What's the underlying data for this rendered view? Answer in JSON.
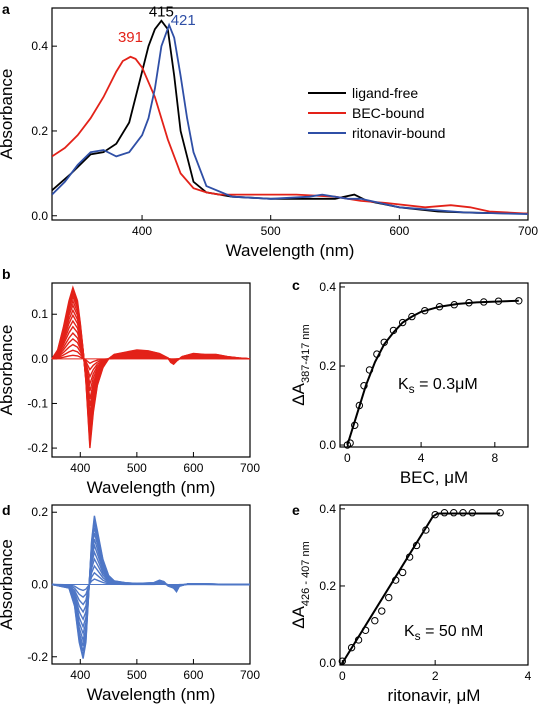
{
  "colors": {
    "black": "#000000",
    "red": "#e32219",
    "blue": "#2f4fa6",
    "lightblue": "#4f77c6"
  },
  "chart_data": [
    {
      "panel": "a",
      "type": "line",
      "xlabel": "Wavelength (nm)",
      "ylabel": "Absorbance",
      "xlim": [
        330,
        700
      ],
      "ylim": [
        -0.01,
        0.49
      ],
      "xticks": [
        400,
        500,
        600,
        700
      ],
      "yticks": [
        0.0,
        0.2,
        0.4
      ],
      "xtick_labels": [
        "400",
        "500",
        "600",
        "700"
      ],
      "ytick_labels": [
        "0.0",
        "0.2",
        "0.4"
      ],
      "legend": {
        "position": "middle-right"
      },
      "annotations": [
        {
          "text": "415",
          "color": "#000000",
          "x": 415,
          "y": 0.47
        },
        {
          "text": "391",
          "color": "#e32219",
          "x": 391,
          "y": 0.41
        },
        {
          "text": "421",
          "color": "#2f4fa6",
          "x": 432,
          "y": 0.45
        }
      ],
      "series": [
        {
          "name": "ligand-free",
          "color": "#000000",
          "x": [
            330,
            345,
            360,
            370,
            380,
            390,
            400,
            405,
            410,
            415,
            420,
            425,
            430,
            440,
            450,
            470,
            500,
            530,
            550,
            565,
            575,
            600,
            630,
            660,
            700
          ],
          "y": [
            0.06,
            0.1,
            0.145,
            0.15,
            0.17,
            0.22,
            0.34,
            0.4,
            0.44,
            0.46,
            0.44,
            0.33,
            0.2,
            0.08,
            0.055,
            0.045,
            0.04,
            0.04,
            0.04,
            0.05,
            0.035,
            0.02,
            0.01,
            0.007,
            0.005
          ]
        },
        {
          "name": "BEC-bound",
          "color": "#e32219",
          "x": [
            330,
            340,
            350,
            360,
            370,
            380,
            385,
            391,
            395,
            400,
            410,
            420,
            430,
            440,
            450,
            460,
            470,
            490,
            520,
            550,
            570,
            590,
            620,
            640,
            655,
            670,
            700
          ],
          "y": [
            0.14,
            0.16,
            0.19,
            0.23,
            0.28,
            0.34,
            0.365,
            0.375,
            0.37,
            0.35,
            0.28,
            0.18,
            0.1,
            0.065,
            0.055,
            0.05,
            0.05,
            0.05,
            0.05,
            0.045,
            0.035,
            0.03,
            0.02,
            0.025,
            0.02,
            0.01,
            0.005
          ]
        },
        {
          "name": "ritonavir-bound",
          "color": "#2f4fa6",
          "x": [
            330,
            340,
            350,
            360,
            370,
            380,
            390,
            400,
            405,
            410,
            415,
            421,
            425,
            430,
            435,
            440,
            450,
            470,
            500,
            530,
            540,
            560,
            570,
            600,
            650,
            700
          ],
          "y": [
            0.05,
            0.08,
            0.12,
            0.15,
            0.155,
            0.14,
            0.15,
            0.19,
            0.23,
            0.3,
            0.4,
            0.45,
            0.42,
            0.33,
            0.23,
            0.15,
            0.07,
            0.045,
            0.04,
            0.045,
            0.05,
            0.04,
            0.04,
            0.02,
            0.008,
            0.004
          ]
        }
      ]
    },
    {
      "panel": "b",
      "type": "line",
      "xlabel": "Wavelength (nm)",
      "ylabel": "Absorbance",
      "xlim": [
        350,
        700
      ],
      "ylim": [
        -0.22,
        0.17
      ],
      "xticks": [
        400,
        500,
        600,
        700
      ],
      "yticks": [
        -0.2,
        -0.1,
        0.0,
        0.1
      ],
      "xtick_labels": [
        "400",
        "500",
        "600",
        "700"
      ],
      "ytick_labels": [
        "-0.2",
        "-0.1",
        "0.0",
        "0.1"
      ],
      "color": "#e32219",
      "family_scales": [
        0.05,
        0.12,
        0.2,
        0.28,
        0.36,
        0.45,
        0.53,
        0.61,
        0.68,
        0.75,
        0.81,
        0.87,
        0.92,
        0.96,
        1.0
      ],
      "x": [
        350,
        360,
        370,
        380,
        387,
        395,
        400,
        405,
        410,
        417,
        423,
        430,
        440,
        450,
        460,
        480,
        500,
        520,
        540,
        555,
        560,
        565,
        570,
        580,
        600,
        620,
        640,
        660,
        680,
        700
      ],
      "y": [
        0.0,
        0.02,
        0.07,
        0.13,
        0.16,
        0.13,
        0.08,
        0.02,
        -0.05,
        -0.2,
        -0.12,
        -0.06,
        -0.02,
        0.0,
        0.01,
        0.015,
        0.02,
        0.018,
        0.012,
        0.002,
        -0.008,
        -0.012,
        -0.005,
        0.005,
        0.012,
        0.01,
        0.01,
        0.005,
        0.002,
        0.0
      ]
    },
    {
      "panel": "c",
      "type": "scatter",
      "xlabel": "BEC, μM",
      "ylabel": "ΔA",
      "ylabel_sub": "387-417 nm",
      "xlim": [
        -0.4,
        9.8
      ],
      "ylim": [
        -0.005,
        0.41
      ],
      "xticks": [
        0,
        4,
        8
      ],
      "yticks": [
        0.0,
        0.2,
        0.4
      ],
      "xtick_labels": [
        "0",
        "4",
        "8"
      ],
      "ytick_labels": [
        "0.0",
        "0.2",
        "0.4"
      ],
      "ks_label": "K",
      "ks_sub": "s",
      "ks_value": " = 0.3μM",
      "points_x": [
        0,
        0.15,
        0.4,
        0.65,
        0.9,
        1.2,
        1.6,
        2.0,
        2.5,
        3.0,
        3.5,
        4.2,
        5.0,
        5.8,
        6.6,
        7.4,
        8.2,
        9.3
      ],
      "points_y": [
        0.0,
        0.005,
        0.05,
        0.1,
        0.15,
        0.19,
        0.23,
        0.26,
        0.29,
        0.31,
        0.325,
        0.34,
        0.35,
        0.355,
        0.36,
        0.362,
        0.364,
        0.365
      ],
      "fit_x": [
        0,
        0.5,
        1,
        1.5,
        2,
        2.5,
        3,
        3.5,
        4,
        5,
        6,
        7,
        8,
        9.3
      ],
      "fit_y": [
        0.0,
        0.075,
        0.15,
        0.21,
        0.255,
        0.285,
        0.31,
        0.325,
        0.337,
        0.35,
        0.357,
        0.361,
        0.363,
        0.365
      ]
    },
    {
      "panel": "d",
      "type": "line",
      "xlabel": "Wavelength (nm)",
      "ylabel": "Absorbance",
      "xlim": [
        350,
        700
      ],
      "ylim": [
        -0.22,
        0.22
      ],
      "xticks": [
        400,
        500,
        600,
        700
      ],
      "yticks": [
        -0.2,
        0.0,
        0.2
      ],
      "xtick_labels": [
        "400",
        "500",
        "600",
        "700"
      ],
      "ytick_labels": [
        "-0.2",
        "0.0",
        "0.2"
      ],
      "color": "#4f77c6",
      "family_scales": [
        0.08,
        0.17,
        0.27,
        0.37,
        0.47,
        0.57,
        0.66,
        0.75,
        0.83,
        0.9,
        0.96,
        1.0
      ],
      "x": [
        350,
        365,
        380,
        390,
        398,
        405,
        410,
        415,
        420,
        425,
        430,
        440,
        450,
        460,
        480,
        500,
        530,
        540,
        548,
        555,
        565,
        570,
        575,
        590,
        620,
        660,
        700
      ],
      "y": [
        0.0,
        -0.005,
        -0.01,
        -0.06,
        -0.16,
        -0.205,
        -0.16,
        -0.02,
        0.12,
        0.19,
        0.15,
        0.07,
        0.025,
        0.01,
        0.005,
        0.003,
        0.005,
        0.012,
        0.008,
        -0.004,
        -0.01,
        -0.02,
        -0.005,
        0.002,
        0.002,
        0.0,
        0.0
      ]
    },
    {
      "panel": "e",
      "type": "scatter",
      "xlabel": "ritonavir, μM",
      "ylabel": "ΔA",
      "ylabel_sub": "426 - 407 nm",
      "xlim": [
        -0.05,
        4.0
      ],
      "ylim": [
        -0.005,
        0.41
      ],
      "xticks": [
        0,
        2,
        4
      ],
      "yticks": [
        0.0,
        0.2,
        0.4
      ],
      "xtick_labels": [
        "0",
        "2",
        "4"
      ],
      "ytick_labels": [
        "0.0",
        "0.2",
        "0.4"
      ],
      "ks_label": "K",
      "ks_sub": "s",
      "ks_value": " = 50 nM",
      "points_x": [
        0,
        0.2,
        0.35,
        0.5,
        0.7,
        0.85,
        1.0,
        1.15,
        1.3,
        1.45,
        1.6,
        1.8,
        2.0,
        2.2,
        2.4,
        2.6,
        2.8,
        3.4
      ],
      "points_y": [
        0.005,
        0.04,
        0.06,
        0.085,
        0.11,
        0.135,
        0.17,
        0.215,
        0.235,
        0.275,
        0.305,
        0.345,
        0.385,
        0.39,
        0.39,
        0.39,
        0.39,
        0.39
      ],
      "fit_x": [
        0,
        1.95,
        2.05,
        3.4
      ],
      "fit_y": [
        0.0,
        0.38,
        0.388,
        0.388
      ]
    }
  ]
}
